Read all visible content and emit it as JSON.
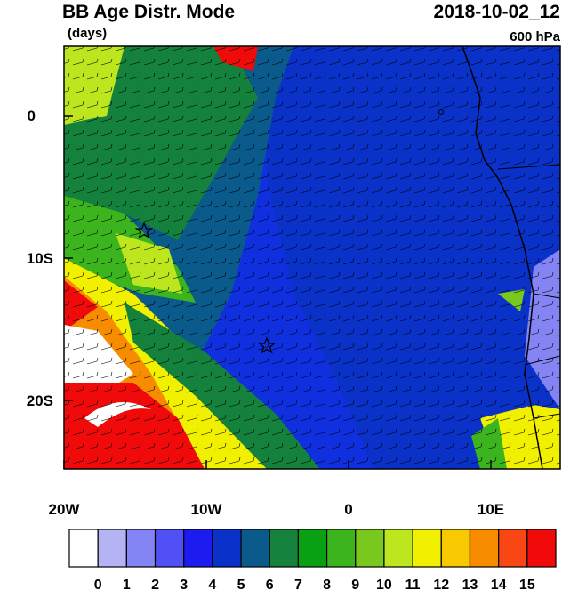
{
  "title": "BB Age Distr. Mode",
  "units": "(days)",
  "datetime": "2018-10-02_12",
  "level": "600 hPa",
  "x_ticks": [
    "20W",
    "10W",
    "0",
    "10E"
  ],
  "y_ticks": [
    "0",
    "10S",
    "20S"
  ],
  "colorbar": {
    "labels": [
      "0",
      "1",
      "2",
      "3",
      "4",
      "5",
      "6",
      "7",
      "8",
      "9",
      "10",
      "11",
      "12",
      "13",
      "14",
      "15"
    ],
    "colors": [
      "#ffffff",
      "#b4b4f4",
      "#8484f4",
      "#5050f4",
      "#1c1cf0",
      "#0a32c8",
      "#0a5a8c",
      "#14823c",
      "#0aa014",
      "#3cb41e",
      "#78c81e",
      "#bee61e",
      "#f0f000",
      "#f8c800",
      "#f88c00",
      "#f84614",
      "#f00a0a"
    ]
  }
}
